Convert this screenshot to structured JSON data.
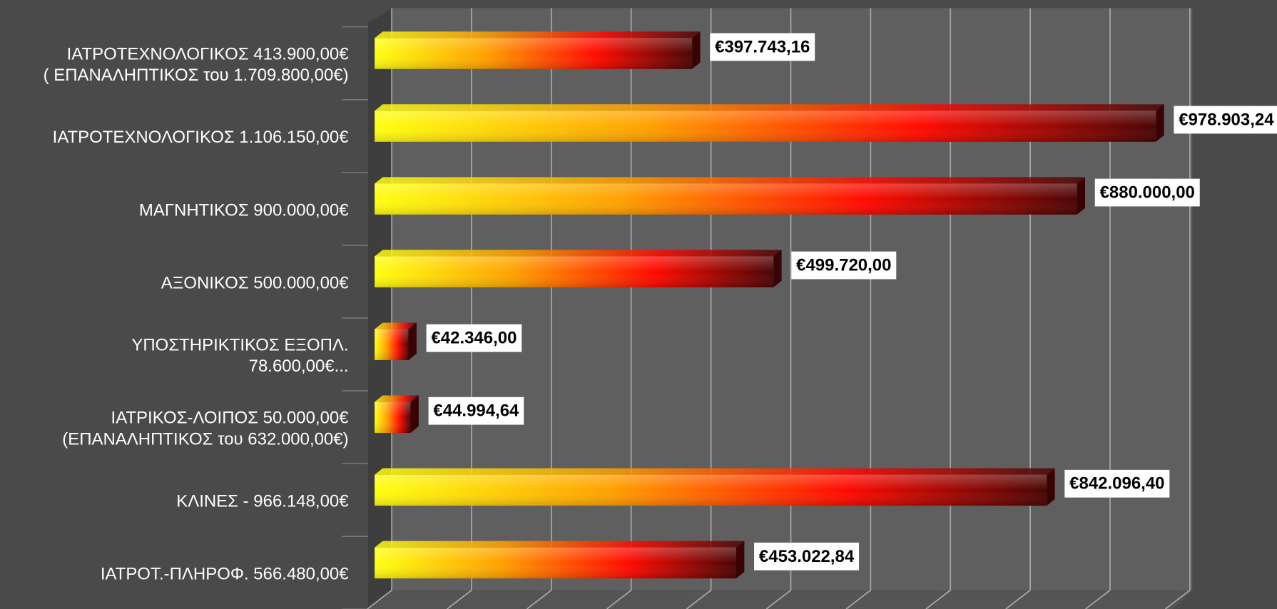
{
  "chart_data": {
    "type": "bar",
    "orientation": "horizontal",
    "categories": [
      "ΙΑΤΡΟΤΕΧΝΟΛΟΓΙΚΟΣ 413.900,00€\n( ΕΠΑΝΑΛΗΠΤΙΚΟΣ του 1.709.800,00€)",
      "ΙΑΤΡΟΤΕΧΝΟΛΟΓΙΚΟΣ 1.106.150,00€",
      "ΜΑΓΝΗΤΙΚΟΣ 900.000,00€",
      "ΑΞΟΝΙΚΟΣ 500.000,00€",
      "ΥΠΟΣΤΗΡΙΚΤΙΚΟΣ ΕΞΟΠΛ.\n78.600,00€...",
      "ΙΑΤΡΙΚΟΣ-ΛΟΙΠΟΣ 50.000,00€\n(ΕΠΑΝΑΛΗΠΤΙΚΟΣ του 632.000,00€)",
      "ΚΛΙΝΕΣ - 966.148,00€",
      "ΙΑΤΡΟΤ.-ΠΛΗΡΟΦ. 566.480,00€"
    ],
    "values": [
      397743.16,
      978903.24,
      880000,
      499720,
      42346,
      44994.64,
      842096.4,
      453022.84
    ],
    "value_labels": [
      "€397.743,16",
      "€978.903,24",
      "€880.000,00",
      "€499.720,00",
      "€42.346,00",
      "€44.994,64",
      "€842.096,40",
      "€453.022,84"
    ],
    "xlim": [
      0,
      1000000
    ],
    "xticks": [
      0,
      100000,
      200000,
      300000,
      400000,
      500000,
      600000,
      700000,
      800000,
      900000,
      1000000
    ],
    "grid": true
  }
}
